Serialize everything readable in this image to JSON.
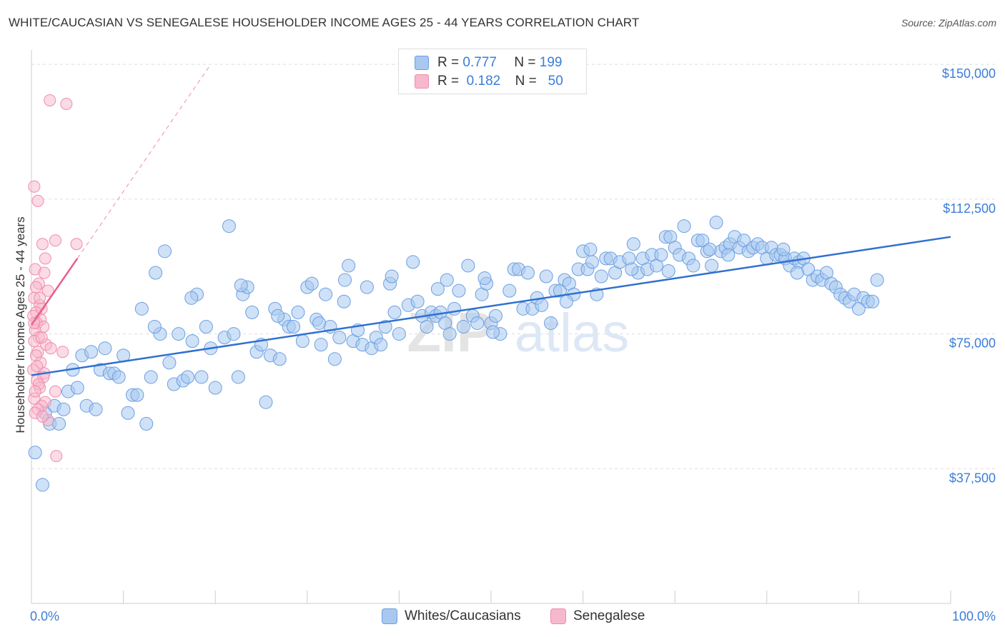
{
  "header": {
    "title": "WHITE/CAUCASIAN VS SENEGALESE HOUSEHOLDER INCOME AGES 25 - 44 YEARS CORRELATION CHART",
    "source": "Source: ZipAtlas.com"
  },
  "legend": {
    "r_label": "R =",
    "n_label": "N =",
    "rows": [
      {
        "r": "0.777",
        "n": "199",
        "color": "#a8c8f0"
      },
      {
        "r": "0.182",
        "n": "50",
        "color": "#f7b8cc"
      }
    ]
  },
  "bottom_legend": [
    "Whites/Caucasians",
    "Senegalese"
  ],
  "watermark": {
    "zip": "ZIP",
    "atlas": "atlas"
  },
  "colors": {
    "blue_fill": "#a8c8f0",
    "blue_stroke": "#6b9fe0",
    "blue_line": "#3070d0",
    "pink_fill": "#f7b8cc",
    "pink_stroke": "#f08cac",
    "pink_line": "#e8608c",
    "axis_text": "#3b7dd8",
    "grid": "#dddddd"
  },
  "chart_data": {
    "type": "scatter",
    "title": "WHITE/CAUCASIAN VS SENEGALESE HOUSEHOLDER INCOME AGES 25 - 44 YEARS CORRELATION CHART",
    "xlabel": "",
    "ylabel": "Householder Income Ages 25 - 44 years",
    "x_ticks": [
      "0.0%",
      "100.0%"
    ],
    "y_ticks": [
      "$37,500",
      "$75,000",
      "$112,500",
      "$150,000"
    ],
    "y_tick_values": [
      37500,
      75000,
      112500,
      150000
    ],
    "xlim": [
      0,
      100
    ],
    "ylim": [
      0,
      154000
    ],
    "grid": true,
    "series": [
      {
        "name": "Whites/Caucasians",
        "r": 0.777,
        "n": 199,
        "trend": [
          [
            0,
            63500
          ],
          [
            100,
            102000
          ]
        ],
        "points": [
          [
            0.4,
            42000
          ],
          [
            1.2,
            33000
          ],
          [
            1.5,
            53000
          ],
          [
            2,
            50000
          ],
          [
            2.5,
            55000
          ],
          [
            3,
            50000
          ],
          [
            3.5,
            54000
          ],
          [
            4,
            59000
          ],
          [
            4.5,
            65000
          ],
          [
            5,
            60000
          ],
          [
            5.5,
            69000
          ],
          [
            6,
            55000
          ],
          [
            6.5,
            70000
          ],
          [
            7,
            54000
          ],
          [
            7.5,
            65000
          ],
          [
            8,
            71000
          ],
          [
            8.5,
            64000
          ],
          [
            9,
            64000
          ],
          [
            9.5,
            63000
          ],
          [
            10,
            69000
          ],
          [
            10.5,
            53000
          ],
          [
            11,
            58000
          ],
          [
            11.5,
            58000
          ],
          [
            12,
            82000
          ],
          [
            12.5,
            50000
          ],
          [
            13,
            63000
          ],
          [
            13.5,
            92000
          ],
          [
            14,
            75000
          ],
          [
            14.5,
            98000
          ],
          [
            15,
            67000
          ],
          [
            15.5,
            61000
          ],
          [
            16,
            75000
          ],
          [
            16.5,
            62000
          ],
          [
            17,
            63000
          ],
          [
            17.5,
            73000
          ],
          [
            18,
            86000
          ],
          [
            18.5,
            63000
          ],
          [
            19,
            77000
          ],
          [
            19.5,
            71000
          ],
          [
            20,
            60000
          ],
          [
            21,
            74000
          ],
          [
            21.5,
            105000
          ],
          [
            22,
            75000
          ],
          [
            22.5,
            63000
          ],
          [
            23,
            86000
          ],
          [
            23.5,
            88000
          ],
          [
            24,
            81000
          ],
          [
            24.5,
            70000
          ],
          [
            25,
            72000
          ],
          [
            25.5,
            56000
          ],
          [
            26,
            69000
          ],
          [
            26.5,
            82000
          ],
          [
            27,
            68000
          ],
          [
            27.5,
            79000
          ],
          [
            28,
            77000
          ],
          [
            28.5,
            77000
          ],
          [
            29,
            81000
          ],
          [
            29.5,
            73000
          ],
          [
            30,
            88000
          ],
          [
            30.5,
            89000
          ],
          [
            31,
            79000
          ],
          [
            31.5,
            72000
          ],
          [
            32,
            86000
          ],
          [
            32.5,
            77000
          ],
          [
            33,
            68000
          ],
          [
            33.5,
            74000
          ],
          [
            34,
            84000
          ],
          [
            34.5,
            94000
          ],
          [
            35,
            73000
          ],
          [
            35.5,
            76000
          ],
          [
            36,
            72000
          ],
          [
            36.5,
            88000
          ],
          [
            37,
            71000
          ],
          [
            37.5,
            74000
          ],
          [
            38,
            72000
          ],
          [
            38.5,
            77000
          ],
          [
            39,
            89000
          ],
          [
            39.5,
            81000
          ],
          [
            40,
            75000
          ],
          [
            41,
            83000
          ],
          [
            41.5,
            95000
          ],
          [
            42,
            84000
          ],
          [
            42.5,
            80000
          ],
          [
            43,
            77000
          ],
          [
            43.5,
            81000
          ],
          [
            44,
            80000
          ],
          [
            44.5,
            81000
          ],
          [
            45,
            78000
          ],
          [
            45.5,
            75000
          ],
          [
            46,
            82000
          ],
          [
            46.5,
            87000
          ],
          [
            47,
            77000
          ],
          [
            47.5,
            94000
          ],
          [
            48,
            80000
          ],
          [
            48.5,
            78000
          ],
          [
            49,
            86000
          ],
          [
            49.5,
            89000
          ],
          [
            50,
            78000
          ],
          [
            50.5,
            80000
          ],
          [
            51,
            75000
          ],
          [
            52,
            87000
          ],
          [
            52.5,
            93000
          ],
          [
            53,
            93000
          ],
          [
            53.5,
            82000
          ],
          [
            54,
            92000
          ],
          [
            54.5,
            82000
          ],
          [
            55,
            85000
          ],
          [
            55.5,
            83000
          ],
          [
            56,
            91000
          ],
          [
            56.5,
            78000
          ],
          [
            57,
            87000
          ],
          [
            57.5,
            87000
          ],
          [
            58,
            90000
          ],
          [
            58.5,
            89000
          ],
          [
            59,
            86000
          ],
          [
            59.5,
            93000
          ],
          [
            60,
            98000
          ],
          [
            60.5,
            93000
          ],
          [
            61,
            95000
          ],
          [
            61.5,
            86000
          ],
          [
            62,
            91000
          ],
          [
            62.5,
            96000
          ],
          [
            63,
            96000
          ],
          [
            63.5,
            92000
          ],
          [
            64,
            95000
          ],
          [
            65,
            96000
          ],
          [
            65.5,
            100000
          ],
          [
            66,
            92000
          ],
          [
            66.5,
            96000
          ],
          [
            67,
            93000
          ],
          [
            67.5,
            97000
          ],
          [
            68,
            94000
          ],
          [
            68.5,
            97000
          ],
          [
            69,
            102000
          ],
          [
            69.5,
            102000
          ],
          [
            70,
            99000
          ],
          [
            70.5,
            97000
          ],
          [
            71,
            105000
          ],
          [
            71.5,
            96000
          ],
          [
            72,
            94000
          ],
          [
            72.5,
            101000
          ],
          [
            73,
            101000
          ],
          [
            73.5,
            98000
          ],
          [
            74,
            94000
          ],
          [
            74.5,
            106000
          ],
          [
            75,
            98000
          ],
          [
            75.5,
            99000
          ],
          [
            76,
            100000
          ],
          [
            76.5,
            102000
          ],
          [
            77,
            99000
          ],
          [
            77.5,
            101000
          ],
          [
            78,
            98000
          ],
          [
            78.5,
            99000
          ],
          [
            79,
            100000
          ],
          [
            79.5,
            99000
          ],
          [
            80,
            96000
          ],
          [
            80.5,
            99000
          ],
          [
            81,
            97000
          ],
          [
            81.5,
            97000
          ],
          [
            82,
            96000
          ],
          [
            82.5,
            94000
          ],
          [
            83,
            96000
          ],
          [
            83.5,
            95000
          ],
          [
            84,
            96000
          ],
          [
            84.5,
            93000
          ],
          [
            85,
            90000
          ],
          [
            85.5,
            91000
          ],
          [
            86,
            90000
          ],
          [
            86.5,
            92000
          ],
          [
            87,
            89000
          ],
          [
            87.5,
            88000
          ],
          [
            88,
            86000
          ],
          [
            88.5,
            85000
          ],
          [
            89,
            84000
          ],
          [
            89.5,
            86000
          ],
          [
            90,
            82000
          ],
          [
            90.5,
            85000
          ],
          [
            91,
            84000
          ],
          [
            91.5,
            84000
          ],
          [
            92,
            90000
          ],
          [
            45.2,
            90000
          ],
          [
            58.2,
            84000
          ],
          [
            65.3,
            93000
          ],
          [
            75.8,
            97000
          ],
          [
            83.3,
            92000
          ],
          [
            50.2,
            75500
          ],
          [
            34.1,
            90000
          ],
          [
            22.8,
            88500
          ],
          [
            39.2,
            91000
          ],
          [
            26.8,
            80000
          ],
          [
            49.3,
            90500
          ],
          [
            17.4,
            85000
          ],
          [
            73.8,
            98500
          ],
          [
            60.8,
            98500
          ],
          [
            69.3,
            92500
          ],
          [
            81.8,
            98500
          ],
          [
            13.4,
            77000
          ],
          [
            31.3,
            78000
          ],
          [
            44.2,
            87500
          ]
        ]
      },
      {
        "name": "Senegalese",
        "r": 0.182,
        "n": 50,
        "trend": [
          [
            0,
            77500
          ],
          [
            5,
            96000
          ]
        ],
        "trend_dashed": [
          [
            5,
            96000
          ],
          [
            19.5,
            150000
          ]
        ],
        "points": [
          [
            2,
            140000
          ],
          [
            3.8,
            139000
          ],
          [
            0.3,
            116000
          ],
          [
            0.7,
            112000
          ],
          [
            1.2,
            100000
          ],
          [
            1.5,
            96000
          ],
          [
            2.6,
            101000
          ],
          [
            4.9,
            100000
          ],
          [
            0.4,
            93000
          ],
          [
            1.4,
            92000
          ],
          [
            0.8,
            89000
          ],
          [
            1.8,
            87000
          ],
          [
            0.3,
            85000
          ],
          [
            0.9,
            83000
          ],
          [
            1.1,
            82000
          ],
          [
            0.5,
            81000
          ],
          [
            0.2,
            80000
          ],
          [
            1,
            79000
          ],
          [
            0.6,
            78000
          ],
          [
            1.3,
            77000
          ],
          [
            0.4,
            76000
          ],
          [
            0.8,
            74000
          ],
          [
            0.3,
            73000
          ],
          [
            1.6,
            72000
          ],
          [
            2.1,
            71000
          ],
          [
            0.7,
            70000
          ],
          [
            3.4,
            70000
          ],
          [
            0.5,
            69000
          ],
          [
            1,
            67000
          ],
          [
            0.2,
            65000
          ],
          [
            1.4,
            64000
          ],
          [
            0.6,
            62000
          ],
          [
            0.9,
            60000
          ],
          [
            2.6,
            59000
          ],
          [
            0.3,
            57000
          ],
          [
            1.5,
            56000
          ],
          [
            1.1,
            55000
          ],
          [
            0.7,
            54000
          ],
          [
            0.4,
            53000
          ],
          [
            1.8,
            51000
          ],
          [
            2.7,
            41000
          ],
          [
            0.5,
            88000
          ],
          [
            0.9,
            85000
          ],
          [
            0.3,
            78000
          ],
          [
            1.1,
            74000
          ],
          [
            0.6,
            66000
          ],
          [
            1.3,
            63000
          ],
          [
            0.8,
            61000
          ],
          [
            0.4,
            59000
          ],
          [
            1.2,
            52000
          ]
        ]
      }
    ]
  }
}
